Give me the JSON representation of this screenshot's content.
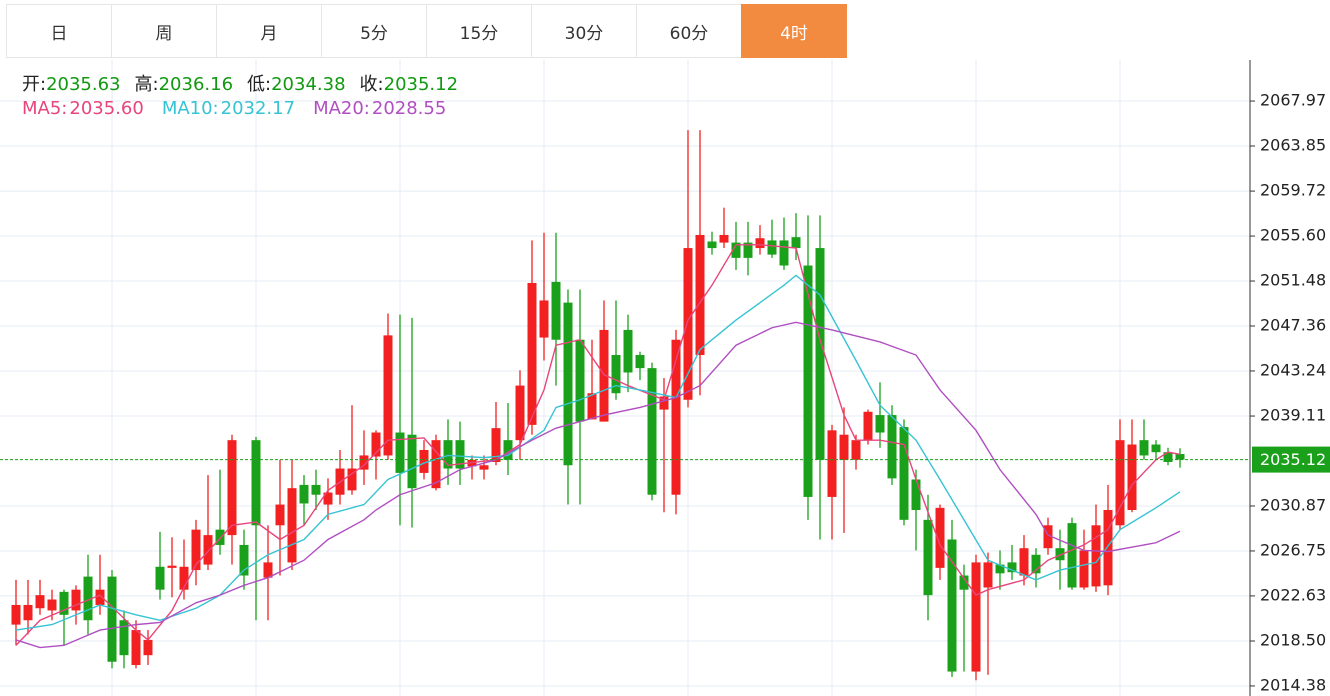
{
  "tabs": {
    "items": [
      "日",
      "周",
      "月",
      "5分",
      "15分",
      "30分",
      "60分",
      "4时"
    ],
    "active": 7
  },
  "chart_data": {
    "type": "candlestick",
    "ohlc_legend": [
      {
        "label": "开:",
        "value": 2035.63
      },
      {
        "label": "高:",
        "value": 2036.16
      },
      {
        "label": "低:",
        "value": 2034.38
      },
      {
        "label": "收:",
        "value": 2035.12
      }
    ],
    "up_color": "#f22020",
    "down_color": "#1aa01a",
    "ylim": [
      2013.46,
      2071.73
    ],
    "yticks": [
      2067.97,
      2063.85,
      2059.72,
      {
        "value": 2055.6,
        "label": "2055.60"
      },
      2051.48,
      2047.36,
      2043.24,
      2039.11,
      2030.87,
      2026.75,
      2022.63,
      {
        "value": 2018.5,
        "label": "2018.50"
      },
      2014.38
    ],
    "grid": true,
    "last_price": 2035.12,
    "last_price_color": "#1aa01a",
    "ohlc": [
      [
        2020.0,
        2024.1,
        2018.1,
        2021.8
      ],
      [
        2020.4,
        2024.1,
        2019.1,
        2021.8
      ],
      [
        2021.5,
        2024.1,
        2020.9,
        2022.7
      ],
      [
        2021.3,
        2023.2,
        2020.4,
        2022.3
      ],
      [
        2023.0,
        2023.2,
        2018.1,
        2020.9
      ],
      [
        2021.3,
        2023.6,
        2020.0,
        2023.2
      ],
      [
        2024.4,
        2026.4,
        2019.1,
        2020.4
      ],
      [
        2021.8,
        2026.4,
        2020.9,
        2023.2
      ],
      [
        2024.4,
        2025.0,
        2016.0,
        2016.6
      ],
      [
        2020.4,
        2021.3,
        2016.0,
        2017.2
      ],
      [
        2016.3,
        2020.4,
        2016.0,
        2019.5
      ],
      [
        2017.2,
        2019.5,
        2016.3,
        2018.6
      ],
      [
        2025.3,
        2028.5,
        2022.3,
        2023.2
      ],
      [
        2025.2,
        2028.0,
        2022.5,
        2025.4
      ],
      [
        2023.2,
        2027.8,
        2022.3,
        2025.3
      ],
      [
        2025.0,
        2029.6,
        2023.6,
        2028.7
      ],
      [
        2025.5,
        2033.7,
        2025.0,
        2028.2
      ],
      [
        2028.7,
        2034.2,
        2026.4,
        2027.3
      ],
      [
        2028.2,
        2037.4,
        2025.5,
        2036.9
      ],
      [
        2027.3,
        2028.7,
        2023.2,
        2024.5
      ],
      [
        2036.9,
        2037.2,
        2020.4,
        2029.1
      ],
      [
        2024.3,
        2029.1,
        2020.4,
        2025.7
      ],
      [
        2029.1,
        2035.1,
        2024.5,
        2031.0
      ],
      [
        2025.7,
        2035.1,
        2025.0,
        2032.5
      ],
      [
        2032.8,
        2033.7,
        2029.1,
        2031.1
      ],
      [
        2032.8,
        2034.2,
        2030.5,
        2031.9
      ],
      [
        2031.0,
        2033.4,
        2029.6,
        2032.1
      ],
      [
        2031.9,
        2036.0,
        2031.0,
        2034.3
      ],
      [
        2032.3,
        2040.1,
        2031.9,
        2034.3
      ],
      [
        2034.2,
        2037.8,
        2032.8,
        2035.5
      ],
      [
        2035.4,
        2037.8,
        2033.3,
        2037.6
      ],
      [
        2035.5,
        2048.5,
        2035.1,
        2046.5
      ],
      [
        2037.6,
        2048.4,
        2029.1,
        2033.9
      ],
      [
        2037.4,
        2048.1,
        2028.9,
        2032.5
      ],
      [
        2033.9,
        2036.9,
        2033.3,
        2036.0
      ],
      [
        2032.5,
        2037.4,
        2032.3,
        2036.9
      ],
      [
        2036.9,
        2038.8,
        2032.8,
        2034.3
      ],
      [
        2036.9,
        2038.6,
        2032.8,
        2034.3
      ],
      [
        2034.5,
        2035.5,
        2033.3,
        2035.1
      ],
      [
        2034.2,
        2035.5,
        2033.3,
        2034.6
      ],
      [
        2034.9,
        2040.4,
        2034.6,
        2038.0
      ],
      [
        2036.9,
        2040.3,
        2033.7,
        2035.1
      ],
      [
        2036.9,
        2043.3,
        2035.1,
        2041.9
      ],
      [
        2038.3,
        2055.2,
        2037.4,
        2051.3
      ],
      [
        2046.3,
        2055.9,
        2044.2,
        2049.7
      ],
      [
        2051.4,
        2055.9,
        2041.9,
        2046.1
      ],
      [
        2049.5,
        2050.7,
        2031.0,
        2034.6
      ],
      [
        2046.1,
        2050.7,
        2031.0,
        2038.6
      ],
      [
        2038.8,
        2046.1,
        2038.8,
        2041.2
      ],
      [
        2038.6,
        2049.7,
        2038.6,
        2047.0
      ],
      [
        2044.7,
        2049.7,
        2040.6,
        2041.2
      ],
      [
        2047.0,
        2048.4,
        2041.3,
        2043.1
      ],
      [
        2044.7,
        2045.0,
        2042.4,
        2043.5
      ],
      [
        2043.5,
        2044.0,
        2031.4,
        2031.9
      ],
      [
        2039.7,
        2042.6,
        2030.3,
        2040.9
      ],
      [
        2031.9,
        2047.0,
        2030.1,
        2046.1
      ],
      [
        2040.6,
        2065.3,
        2039.9,
        2054.5
      ],
      [
        2044.7,
        2065.3,
        2041.0,
        2055.7
      ],
      [
        2055.1,
        2056.0,
        2053.9,
        2054.5
      ],
      [
        2055.0,
        2058.2,
        2054.5,
        2055.7
      ],
      [
        2055.0,
        2056.9,
        2052.5,
        2053.6
      ],
      [
        2055.0,
        2056.9,
        2052.0,
        2053.6
      ],
      [
        2054.5,
        2056.6,
        2053.9,
        2055.4
      ],
      [
        2055.2,
        2057.1,
        2053.6,
        2053.9
      ],
      [
        2055.2,
        2057.3,
        2052.5,
        2052.9
      ],
      [
        2055.5,
        2057.7,
        2053.4,
        2054.5
      ],
      [
        2052.9,
        2057.5,
        2029.6,
        2031.7
      ],
      [
        2054.5,
        2057.5,
        2027.8,
        2035.1
      ],
      [
        2031.7,
        2038.3,
        2027.8,
        2037.8
      ],
      [
        2035.1,
        2039.9,
        2028.4,
        2037.4
      ],
      [
        2035.1,
        2037.4,
        2034.2,
        2036.9
      ],
      [
        2036.9,
        2039.7,
        2036.5,
        2039.5
      ],
      [
        2039.2,
        2042.2,
        2036.2,
        2037.6
      ],
      [
        2039.2,
        2040.1,
        2032.8,
        2033.4
      ],
      [
        2038.1,
        2038.8,
        2029.1,
        2029.6
      ],
      [
        2033.3,
        2034.2,
        2026.8,
        2030.5
      ],
      [
        2029.6,
        2031.9,
        2020.4,
        2022.7
      ],
      [
        2025.2,
        2031.0,
        2024.1,
        2030.7
      ],
      [
        2027.8,
        2029.6,
        2015.2,
        2015.7
      ],
      [
        2024.5,
        2025.5,
        2015.7,
        2023.2
      ],
      [
        2015.7,
        2026.4,
        2014.9,
        2025.7
      ],
      [
        2023.4,
        2026.6,
        2015.4,
        2025.7
      ],
      [
        2025.5,
        2026.8,
        2023.2,
        2024.7
      ],
      [
        2025.7,
        2027.3,
        2024.1,
        2024.8
      ],
      [
        2024.5,
        2028.2,
        2023.6,
        2027.0
      ],
      [
        2026.4,
        2027.0,
        2023.4,
        2024.7
      ],
      [
        2027.0,
        2029.8,
        2026.4,
        2029.1
      ],
      [
        2027.0,
        2028.7,
        2023.2,
        2025.9
      ],
      [
        2029.3,
        2029.8,
        2023.2,
        2023.4
      ],
      [
        2023.4,
        2028.7,
        2023.2,
        2026.8
      ],
      [
        2023.5,
        2031.0,
        2023.0,
        2029.1
      ],
      [
        2023.6,
        2032.8,
        2022.7,
        2030.5
      ],
      [
        2029.1,
        2038.8,
        2028.7,
        2036.9
      ],
      [
        2030.5,
        2038.8,
        2030.3,
        2036.5
      ],
      [
        2036.9,
        2038.8,
        2035.1,
        2035.5
      ],
      [
        2036.5,
        2036.9,
        2035.1,
        2035.8
      ],
      [
        2035.8,
        2036.2,
        2034.6,
        2034.9
      ],
      [
        2035.63,
        2036.16,
        2034.38,
        2035.12
      ]
    ],
    "ma_lines": [
      {
        "name": "MA5:",
        "color": "#e8457c",
        "value_label": "2035.60",
        "x": [
          0,
          2,
          5,
          7,
          10,
          11,
          13,
          15,
          18,
          20,
          22,
          24,
          26,
          29,
          31,
          34,
          36,
          40,
          42,
          44,
          45,
          47,
          49,
          51,
          54,
          56,
          58,
          60,
          62,
          65,
          67,
          69,
          70,
          72,
          74,
          75,
          77,
          80,
          81,
          84,
          86,
          89,
          91,
          93,
          95,
          96,
          97
        ],
        "values": [
          2018.1,
          2020.4,
          2021.8,
          2022.7,
          2019.5,
          2018.6,
          2021.3,
          2025.5,
          2029.1,
          2029.4,
          2027.8,
          2029.1,
          2032.3,
          2034.6,
          2036.9,
          2037.1,
          2034.6,
          2035.1,
          2036.5,
          2041.5,
          2045.6,
          2046.1,
          2042.9,
          2041.9,
          2040.6,
          2047.9,
          2051.1,
          2054.8,
          2054.8,
          2054.5,
          2046.1,
          2039.2,
          2036.9,
          2036.9,
          2036.5,
          2033.3,
          2027.3,
          2022.7,
          2023.2,
          2024.1,
          2025.9,
          2027.3,
          2028.7,
          2032.8,
          2035.1,
          2035.8,
          2035.6
        ]
      },
      {
        "name": "MA10:",
        "color": "#36c3d3",
        "value_label": "2032.17",
        "x": [
          0,
          3,
          7,
          10,
          12,
          15,
          17,
          19,
          21,
          24,
          26,
          29,
          31,
          34,
          36,
          39,
          41,
          44,
          45,
          47,
          50,
          52,
          55,
          57,
          60,
          64,
          65,
          67,
          70,
          72,
          75,
          77,
          79,
          81,
          85,
          87,
          90,
          92,
          95,
          97
        ],
        "values": [
          2019.5,
          2020.0,
          2021.8,
          2020.9,
          2020.4,
          2021.5,
          2022.7,
          2025.0,
          2026.4,
          2027.8,
          2030.1,
          2031.0,
          2033.3,
          2034.8,
          2035.5,
          2035.3,
          2035.5,
          2037.8,
          2039.9,
          2040.6,
          2041.9,
          2041.5,
          2040.8,
          2045.2,
          2047.9,
          2051.1,
          2052.0,
          2050.2,
          2044.2,
          2040.1,
          2036.9,
          2033.3,
          2029.6,
          2025.9,
          2024.1,
          2025.0,
          2025.7,
          2028.7,
          2030.7,
          2032.17
        ]
      },
      {
        "name": "MA20:",
        "color": "#b04fc2",
        "value_label": "2028.55",
        "x": [
          0,
          2,
          4,
          7,
          10,
          12,
          15,
          17,
          19,
          21,
          24,
          26,
          29,
          30,
          32,
          35,
          37,
          40,
          43,
          45,
          49,
          52,
          55,
          57,
          60,
          63,
          65,
          68,
          72,
          75,
          77,
          80,
          82,
          85,
          86,
          89,
          91,
          95,
          97
        ],
        "values": [
          2018.6,
          2017.9,
          2018.1,
          2019.5,
          2020.0,
          2020.2,
          2022.0,
          2022.7,
          2023.6,
          2024.3,
          2025.9,
          2027.8,
          2029.6,
          2030.5,
          2031.9,
          2033.0,
          2034.2,
          2035.1,
          2036.9,
          2038.0,
          2039.2,
          2039.9,
          2040.8,
          2041.9,
          2045.6,
          2047.2,
          2047.7,
          2047.0,
          2045.9,
          2044.7,
          2041.5,
          2037.8,
          2034.2,
          2030.1,
          2028.2,
          2026.8,
          2026.7,
          2027.5,
          2028.55
        ]
      }
    ]
  }
}
